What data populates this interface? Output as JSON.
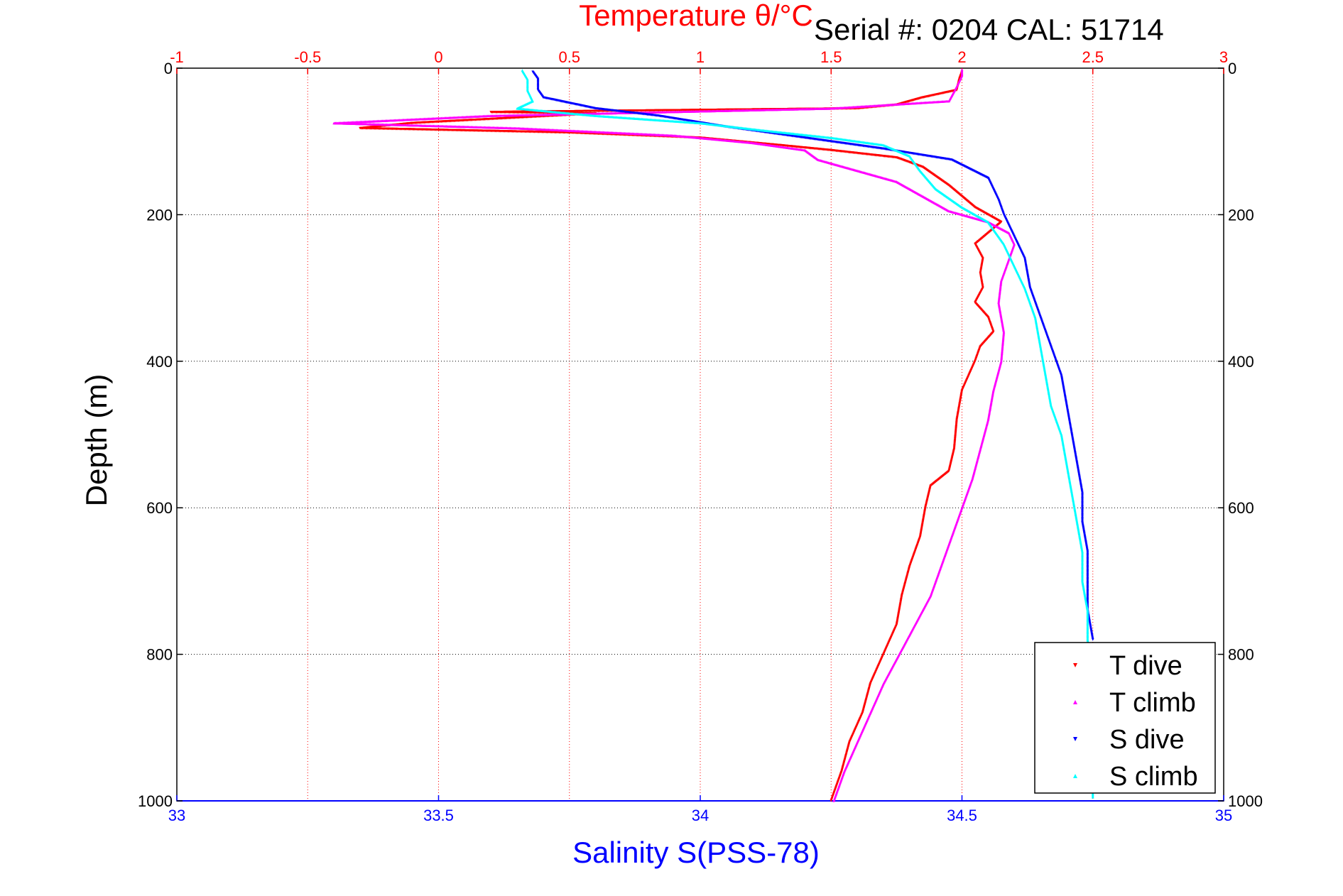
{
  "annotation": "Serial #: 0204  CAL: 51714",
  "chart_data": {
    "type": "scatter",
    "title": "",
    "x_top": {
      "label": "Temperature θ/°C",
      "range": [
        -1,
        3
      ],
      "ticks": [
        "-1",
        "-0.5",
        "0",
        "0.5",
        "1",
        "1.5",
        "2",
        "2.5",
        "3"
      ],
      "tick_values": [
        -1,
        -0.5,
        0,
        0.5,
        1,
        1.5,
        2,
        2.5,
        3
      ],
      "color": "#ff0000"
    },
    "x_bottom": {
      "label": "Salinity S(PSS-78)",
      "range": [
        33,
        35
      ],
      "ticks": [
        "33",
        "33.5",
        "34",
        "34.5",
        "35"
      ],
      "tick_values": [
        33,
        33.5,
        34,
        34.5,
        35
      ],
      "color": "#0000ff"
    },
    "y": {
      "label": "Depth (m)",
      "range": [
        0,
        1000
      ],
      "reversed": true,
      "ticks": [
        "0",
        "200",
        "400",
        "600",
        "800",
        "1000"
      ],
      "tick_values": [
        0,
        200,
        400,
        600,
        800,
        1000
      ]
    },
    "grid": "dotted",
    "legend_position": "bottom-right",
    "series": [
      {
        "name": "T dive",
        "axis": "temperature",
        "color": "#ff0000",
        "marker": "triangle-down",
        "points": [
          [
            2.0,
            5
          ],
          [
            1.99,
            15
          ],
          [
            1.98,
            30
          ],
          [
            1.85,
            40
          ],
          [
            1.75,
            50
          ],
          [
            1.6,
            55
          ],
          [
            0.2,
            60
          ],
          [
            0.6,
            62
          ],
          [
            -0.1,
            75
          ],
          [
            -0.3,
            82
          ],
          [
            0.5,
            88
          ],
          [
            1.0,
            95
          ],
          [
            1.3,
            105
          ],
          [
            1.5,
            112
          ],
          [
            1.75,
            122
          ],
          [
            1.85,
            135
          ],
          [
            1.95,
            160
          ],
          [
            2.05,
            190
          ],
          [
            2.15,
            210
          ],
          [
            2.1,
            225
          ],
          [
            2.05,
            240
          ],
          [
            2.08,
            260
          ],
          [
            2.07,
            280
          ],
          [
            2.08,
            300
          ],
          [
            2.05,
            320
          ],
          [
            2.1,
            340
          ],
          [
            2.12,
            360
          ],
          [
            2.07,
            380
          ],
          [
            2.05,
            400
          ],
          [
            2.0,
            440
          ],
          [
            1.98,
            480
          ],
          [
            1.97,
            520
          ],
          [
            1.95,
            550
          ],
          [
            1.88,
            570
          ],
          [
            1.86,
            600
          ],
          [
            1.84,
            640
          ],
          [
            1.8,
            680
          ],
          [
            1.77,
            720
          ],
          [
            1.75,
            760
          ],
          [
            1.7,
            800
          ],
          [
            1.65,
            840
          ],
          [
            1.62,
            880
          ],
          [
            1.57,
            920
          ],
          [
            1.54,
            960
          ],
          [
            1.5,
            1000
          ]
        ]
      },
      {
        "name": "T climb",
        "axis": "temperature",
        "color": "#ff00ff",
        "marker": "triangle-up",
        "points": [
          [
            2.0,
            2
          ],
          [
            2.0,
            10
          ],
          [
            1.98,
            25
          ],
          [
            1.95,
            45
          ],
          [
            1.5,
            55
          ],
          [
            0.2,
            65
          ],
          [
            -0.4,
            75
          ],
          [
            0.3,
            82
          ],
          [
            0.9,
            92
          ],
          [
            1.2,
            102
          ],
          [
            1.4,
            112
          ],
          [
            1.45,
            125
          ],
          [
            1.6,
            140
          ],
          [
            1.75,
            155
          ],
          [
            1.85,
            175
          ],
          [
            1.95,
            195
          ],
          [
            2.1,
            210
          ],
          [
            2.18,
            225
          ],
          [
            2.2,
            240
          ],
          [
            2.18,
            260
          ],
          [
            2.15,
            290
          ],
          [
            2.14,
            320
          ],
          [
            2.16,
            360
          ],
          [
            2.15,
            400
          ],
          [
            2.12,
            440
          ],
          [
            2.1,
            480
          ],
          [
            2.07,
            520
          ],
          [
            2.04,
            560
          ],
          [
            2.0,
            600
          ],
          [
            1.96,
            640
          ],
          [
            1.92,
            680
          ],
          [
            1.88,
            720
          ],
          [
            1.82,
            760
          ],
          [
            1.76,
            800
          ],
          [
            1.7,
            840
          ],
          [
            1.65,
            880
          ],
          [
            1.6,
            920
          ],
          [
            1.55,
            960
          ],
          [
            1.51,
            1000
          ]
        ]
      },
      {
        "name": "S dive",
        "axis": "salinity",
        "color": "#0000ff",
        "marker": "triangle-down",
        "points": [
          [
            33.68,
            5
          ],
          [
            33.69,
            15
          ],
          [
            33.69,
            30
          ],
          [
            33.7,
            40
          ],
          [
            33.8,
            55
          ],
          [
            33.92,
            65
          ],
          [
            34.05,
            80
          ],
          [
            34.2,
            95
          ],
          [
            34.35,
            110
          ],
          [
            34.48,
            125
          ],
          [
            34.55,
            150
          ],
          [
            34.57,
            180
          ],
          [
            34.58,
            200
          ],
          [
            34.6,
            230
          ],
          [
            34.62,
            260
          ],
          [
            34.63,
            300
          ],
          [
            34.65,
            340
          ],
          [
            34.67,
            380
          ],
          [
            34.69,
            420
          ],
          [
            34.7,
            460
          ],
          [
            34.71,
            500
          ],
          [
            34.72,
            540
          ],
          [
            34.73,
            580
          ],
          [
            34.73,
            620
          ],
          [
            34.74,
            660
          ],
          [
            34.74,
            700
          ],
          [
            34.74,
            740
          ],
          [
            34.75,
            780
          ]
        ]
      },
      {
        "name": "S climb",
        "axis": "salinity",
        "color": "#00ffff",
        "marker": "triangle-up",
        "points": [
          [
            33.66,
            3
          ],
          [
            33.67,
            15
          ],
          [
            33.67,
            30
          ],
          [
            33.68,
            45
          ],
          [
            33.65,
            55
          ],
          [
            33.8,
            65
          ],
          [
            34.0,
            75
          ],
          [
            34.12,
            85
          ],
          [
            34.25,
            95
          ],
          [
            34.35,
            105
          ],
          [
            34.4,
            120
          ],
          [
            34.42,
            140
          ],
          [
            34.45,
            165
          ],
          [
            34.5,
            190
          ],
          [
            34.55,
            210
          ],
          [
            34.58,
            240
          ],
          [
            34.6,
            270
          ],
          [
            34.62,
            300
          ],
          [
            34.64,
            340
          ],
          [
            34.65,
            380
          ],
          [
            34.66,
            420
          ],
          [
            34.67,
            460
          ],
          [
            34.69,
            500
          ],
          [
            34.7,
            540
          ],
          [
            34.71,
            580
          ],
          [
            34.72,
            620
          ],
          [
            34.73,
            660
          ],
          [
            34.73,
            700
          ],
          [
            34.74,
            740
          ],
          [
            34.74,
            780
          ],
          [
            34.75,
            820
          ],
          [
            34.75,
            860
          ],
          [
            34.75,
            900
          ],
          [
            34.75,
            940
          ],
          [
            34.75,
            980
          ],
          [
            34.75,
            995
          ]
        ]
      }
    ]
  }
}
